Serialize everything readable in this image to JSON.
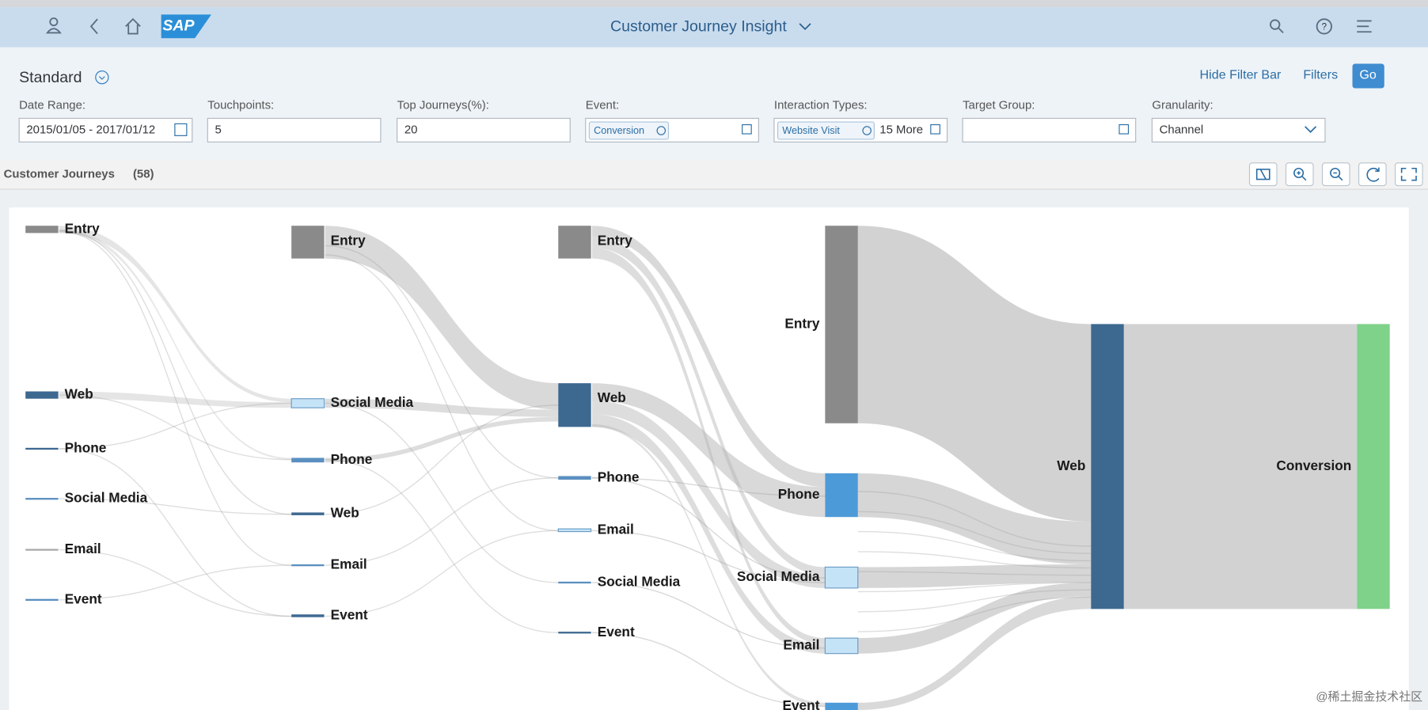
{
  "header": {
    "logo": "SAP",
    "title": "Customer Journey Insight"
  },
  "filter_bar": {
    "variant": "Standard",
    "actions": [
      "Hide Filter Bar",
      "Filters",
      "Go"
    ],
    "fields": [
      {
        "label": "Date Range:",
        "value": "2015/01/05 - 2017/01/12"
      },
      {
        "label": "Touchpoints:",
        "value": "5"
      },
      {
        "label": "Top Journeys(%):",
        "value": "20"
      },
      {
        "label": "Event:",
        "token": "Conversion"
      },
      {
        "label": "Interaction Types:",
        "token": "Website Visit",
        "more": "15 More"
      },
      {
        "label": "Target Group:"
      },
      {
        "label": "Granularity:",
        "value": "Channel"
      }
    ]
  },
  "section": {
    "title": "Customer Journeys",
    "count": "(58)"
  },
  "sankey": {
    "columns": [
      [
        "Entry",
        "Web",
        "Phone",
        "Social Media",
        "Email",
        "Event"
      ],
      [
        "Entry",
        "Social Media",
        "Phone",
        "Web",
        "Email",
        "Event"
      ],
      [
        "Entry",
        "Web",
        "Phone",
        "Email",
        "Social Media",
        "Event"
      ],
      [
        "Entry",
        "Phone",
        "Social Media",
        "Email",
        "Event"
      ],
      [
        "Web"
      ],
      [
        "Conversion"
      ]
    ]
  },
  "watermark": "@稀土掘金技术社区"
}
